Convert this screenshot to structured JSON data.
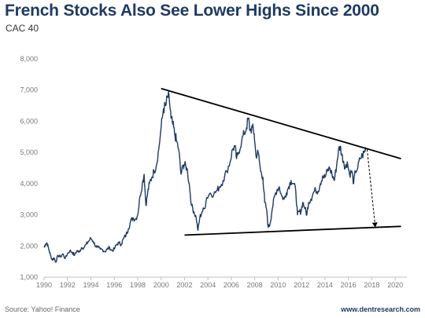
{
  "title": "French Stocks Also See Lower Highs Since 2000",
  "subtitle": "CAC 40",
  "source": "Source: Yahoo! Finance",
  "website": "www.dentresearch.com",
  "chart_data": {
    "type": "line",
    "series": [
      {
        "points": [
          [
            1990.0,
            1950
          ],
          [
            1990.1,
            2050
          ],
          [
            1990.25,
            2100
          ],
          [
            1990.4,
            1900
          ],
          [
            1990.55,
            1700
          ],
          [
            1990.7,
            1550
          ],
          [
            1990.85,
            1620
          ],
          [
            1991.0,
            1480
          ],
          [
            1991.2,
            1700
          ],
          [
            1991.4,
            1650
          ],
          [
            1991.6,
            1750
          ],
          [
            1991.8,
            1600
          ],
          [
            1992.0,
            1750
          ],
          [
            1992.2,
            1850
          ],
          [
            1992.4,
            1800
          ],
          [
            1992.6,
            1700
          ],
          [
            1992.8,
            1850
          ],
          [
            1993.0,
            1800
          ],
          [
            1993.2,
            1950
          ],
          [
            1993.4,
            1950
          ],
          [
            1993.6,
            2050
          ],
          [
            1993.8,
            2150
          ],
          [
            1994.0,
            2250
          ],
          [
            1994.2,
            2150
          ],
          [
            1994.4,
            2000
          ],
          [
            1994.6,
            1950
          ],
          [
            1994.8,
            1900
          ],
          [
            1995.0,
            1880
          ],
          [
            1995.2,
            1820
          ],
          [
            1995.4,
            1900
          ],
          [
            1995.6,
            1950
          ],
          [
            1995.8,
            1850
          ],
          [
            1996.0,
            1900
          ],
          [
            1996.2,
            2050
          ],
          [
            1996.4,
            2100
          ],
          [
            1996.6,
            2050
          ],
          [
            1996.8,
            2250
          ],
          [
            1997.0,
            2350
          ],
          [
            1997.2,
            2550
          ],
          [
            1997.4,
            2800
          ],
          [
            1997.6,
            2900
          ],
          [
            1997.8,
            2850
          ],
          [
            1998.0,
            3000
          ],
          [
            1998.2,
            3600
          ],
          [
            1998.4,
            4000
          ],
          [
            1998.55,
            4300
          ],
          [
            1998.7,
            3300
          ],
          [
            1998.85,
            3700
          ],
          [
            1999.0,
            4000
          ],
          [
            1999.2,
            4200
          ],
          [
            1999.4,
            4400
          ],
          [
            1999.6,
            4600
          ],
          [
            1999.8,
            5100
          ],
          [
            2000.0,
            5800
          ],
          [
            2000.2,
            6400
          ],
          [
            2000.4,
            6500
          ],
          [
            2000.55,
            6800
          ],
          [
            2000.7,
            6700
          ],
          [
            2000.85,
            6100
          ],
          [
            2001.0,
            5900
          ],
          [
            2001.15,
            5600
          ],
          [
            2001.3,
            5400
          ],
          [
            2001.5,
            5100
          ],
          [
            2001.7,
            4300
          ],
          [
            2001.9,
            4600
          ],
          [
            2002.0,
            4600
          ],
          [
            2002.2,
            4500
          ],
          [
            2002.4,
            4000
          ],
          [
            2002.6,
            3300
          ],
          [
            2002.8,
            3100
          ],
          [
            2003.0,
            2900
          ],
          [
            2003.15,
            2500
          ],
          [
            2003.3,
            2900
          ],
          [
            2003.5,
            3100
          ],
          [
            2003.7,
            3200
          ],
          [
            2003.9,
            3550
          ],
          [
            2004.2,
            3700
          ],
          [
            2004.5,
            3650
          ],
          [
            2004.8,
            3800
          ],
          [
            2005.0,
            3900
          ],
          [
            2005.3,
            4100
          ],
          [
            2005.6,
            4400
          ],
          [
            2005.9,
            4700
          ],
          [
            2006.1,
            5100
          ],
          [
            2006.3,
            5200
          ],
          [
            2006.45,
            4800
          ],
          [
            2006.6,
            5000
          ],
          [
            2006.9,
            5400
          ],
          [
            2007.1,
            5600
          ],
          [
            2007.3,
            5800
          ],
          [
            2007.45,
            6100
          ],
          [
            2007.6,
            5700
          ],
          [
            2007.8,
            5800
          ],
          [
            2007.95,
            5600
          ],
          [
            2008.1,
            4900
          ],
          [
            2008.3,
            5000
          ],
          [
            2008.5,
            4400
          ],
          [
            2008.7,
            4200
          ],
          [
            2008.85,
            3400
          ],
          [
            2009.0,
            3200
          ],
          [
            2009.15,
            2600
          ],
          [
            2009.3,
            2700
          ],
          [
            2009.5,
            3200
          ],
          [
            2009.7,
            3600
          ],
          [
            2009.9,
            3800
          ],
          [
            2010.1,
            3900
          ],
          [
            2010.3,
            3600
          ],
          [
            2010.5,
            3500
          ],
          [
            2010.7,
            3700
          ],
          [
            2010.9,
            3900
          ],
          [
            2011.1,
            4100
          ],
          [
            2011.3,
            4000
          ],
          [
            2011.5,
            3800
          ],
          [
            2011.65,
            3000
          ],
          [
            2011.8,
            3100
          ],
          [
            2011.95,
            3100
          ],
          [
            2012.1,
            3400
          ],
          [
            2012.3,
            3200
          ],
          [
            2012.45,
            3000
          ],
          [
            2012.6,
            3400
          ],
          [
            2012.8,
            3500
          ],
          [
            2013.0,
            3700
          ],
          [
            2013.2,
            3800
          ],
          [
            2013.4,
            3750
          ],
          [
            2013.6,
            4000
          ],
          [
            2013.8,
            4250
          ],
          [
            2014.0,
            4200
          ],
          [
            2014.2,
            4400
          ],
          [
            2014.4,
            4500
          ],
          [
            2014.6,
            4300
          ],
          [
            2014.8,
            4100
          ],
          [
            2015.0,
            4600
          ],
          [
            2015.15,
            5050
          ],
          [
            2015.3,
            5200
          ],
          [
            2015.45,
            4900
          ],
          [
            2015.6,
            4700
          ],
          [
            2015.75,
            4500
          ],
          [
            2015.9,
            4700
          ],
          [
            2016.1,
            4300
          ],
          [
            2016.3,
            4400
          ],
          [
            2016.45,
            4000
          ],
          [
            2016.6,
            4400
          ],
          [
            2016.8,
            4500
          ],
          [
            2017.0,
            4800
          ],
          [
            2017.2,
            4900
          ],
          [
            2017.35,
            5000
          ],
          [
            2017.5,
            5150
          ]
        ]
      }
    ],
    "trendlines": {
      "upper": [
        [
          2000.0,
          7050
        ],
        [
          2020.5,
          4800
        ]
      ],
      "lower": [
        [
          2002.0,
          2350
        ],
        [
          2020.5,
          2630
        ]
      ],
      "arrow": [
        [
          2017.6,
          5100
        ],
        [
          2018.3,
          2600
        ]
      ]
    },
    "xlim": [
      1990,
      2021
    ],
    "ylim": [
      1000,
      8000
    ],
    "xticks": [
      "1990",
      "1992",
      "1994",
      "1996",
      "1998",
      "2000",
      "2002",
      "2004",
      "2006",
      "2008",
      "2010",
      "2012",
      "2014",
      "2016",
      "2018",
      "2020"
    ],
    "yticks": [
      "1,000",
      "2,000",
      "3,000",
      "4,000",
      "5,000",
      "6,000",
      "7,000",
      "8,000"
    ],
    "grid": false,
    "line_color": "#1f3a63",
    "trend_color": "#000000",
    "axis_color": "#bfbfbf"
  }
}
